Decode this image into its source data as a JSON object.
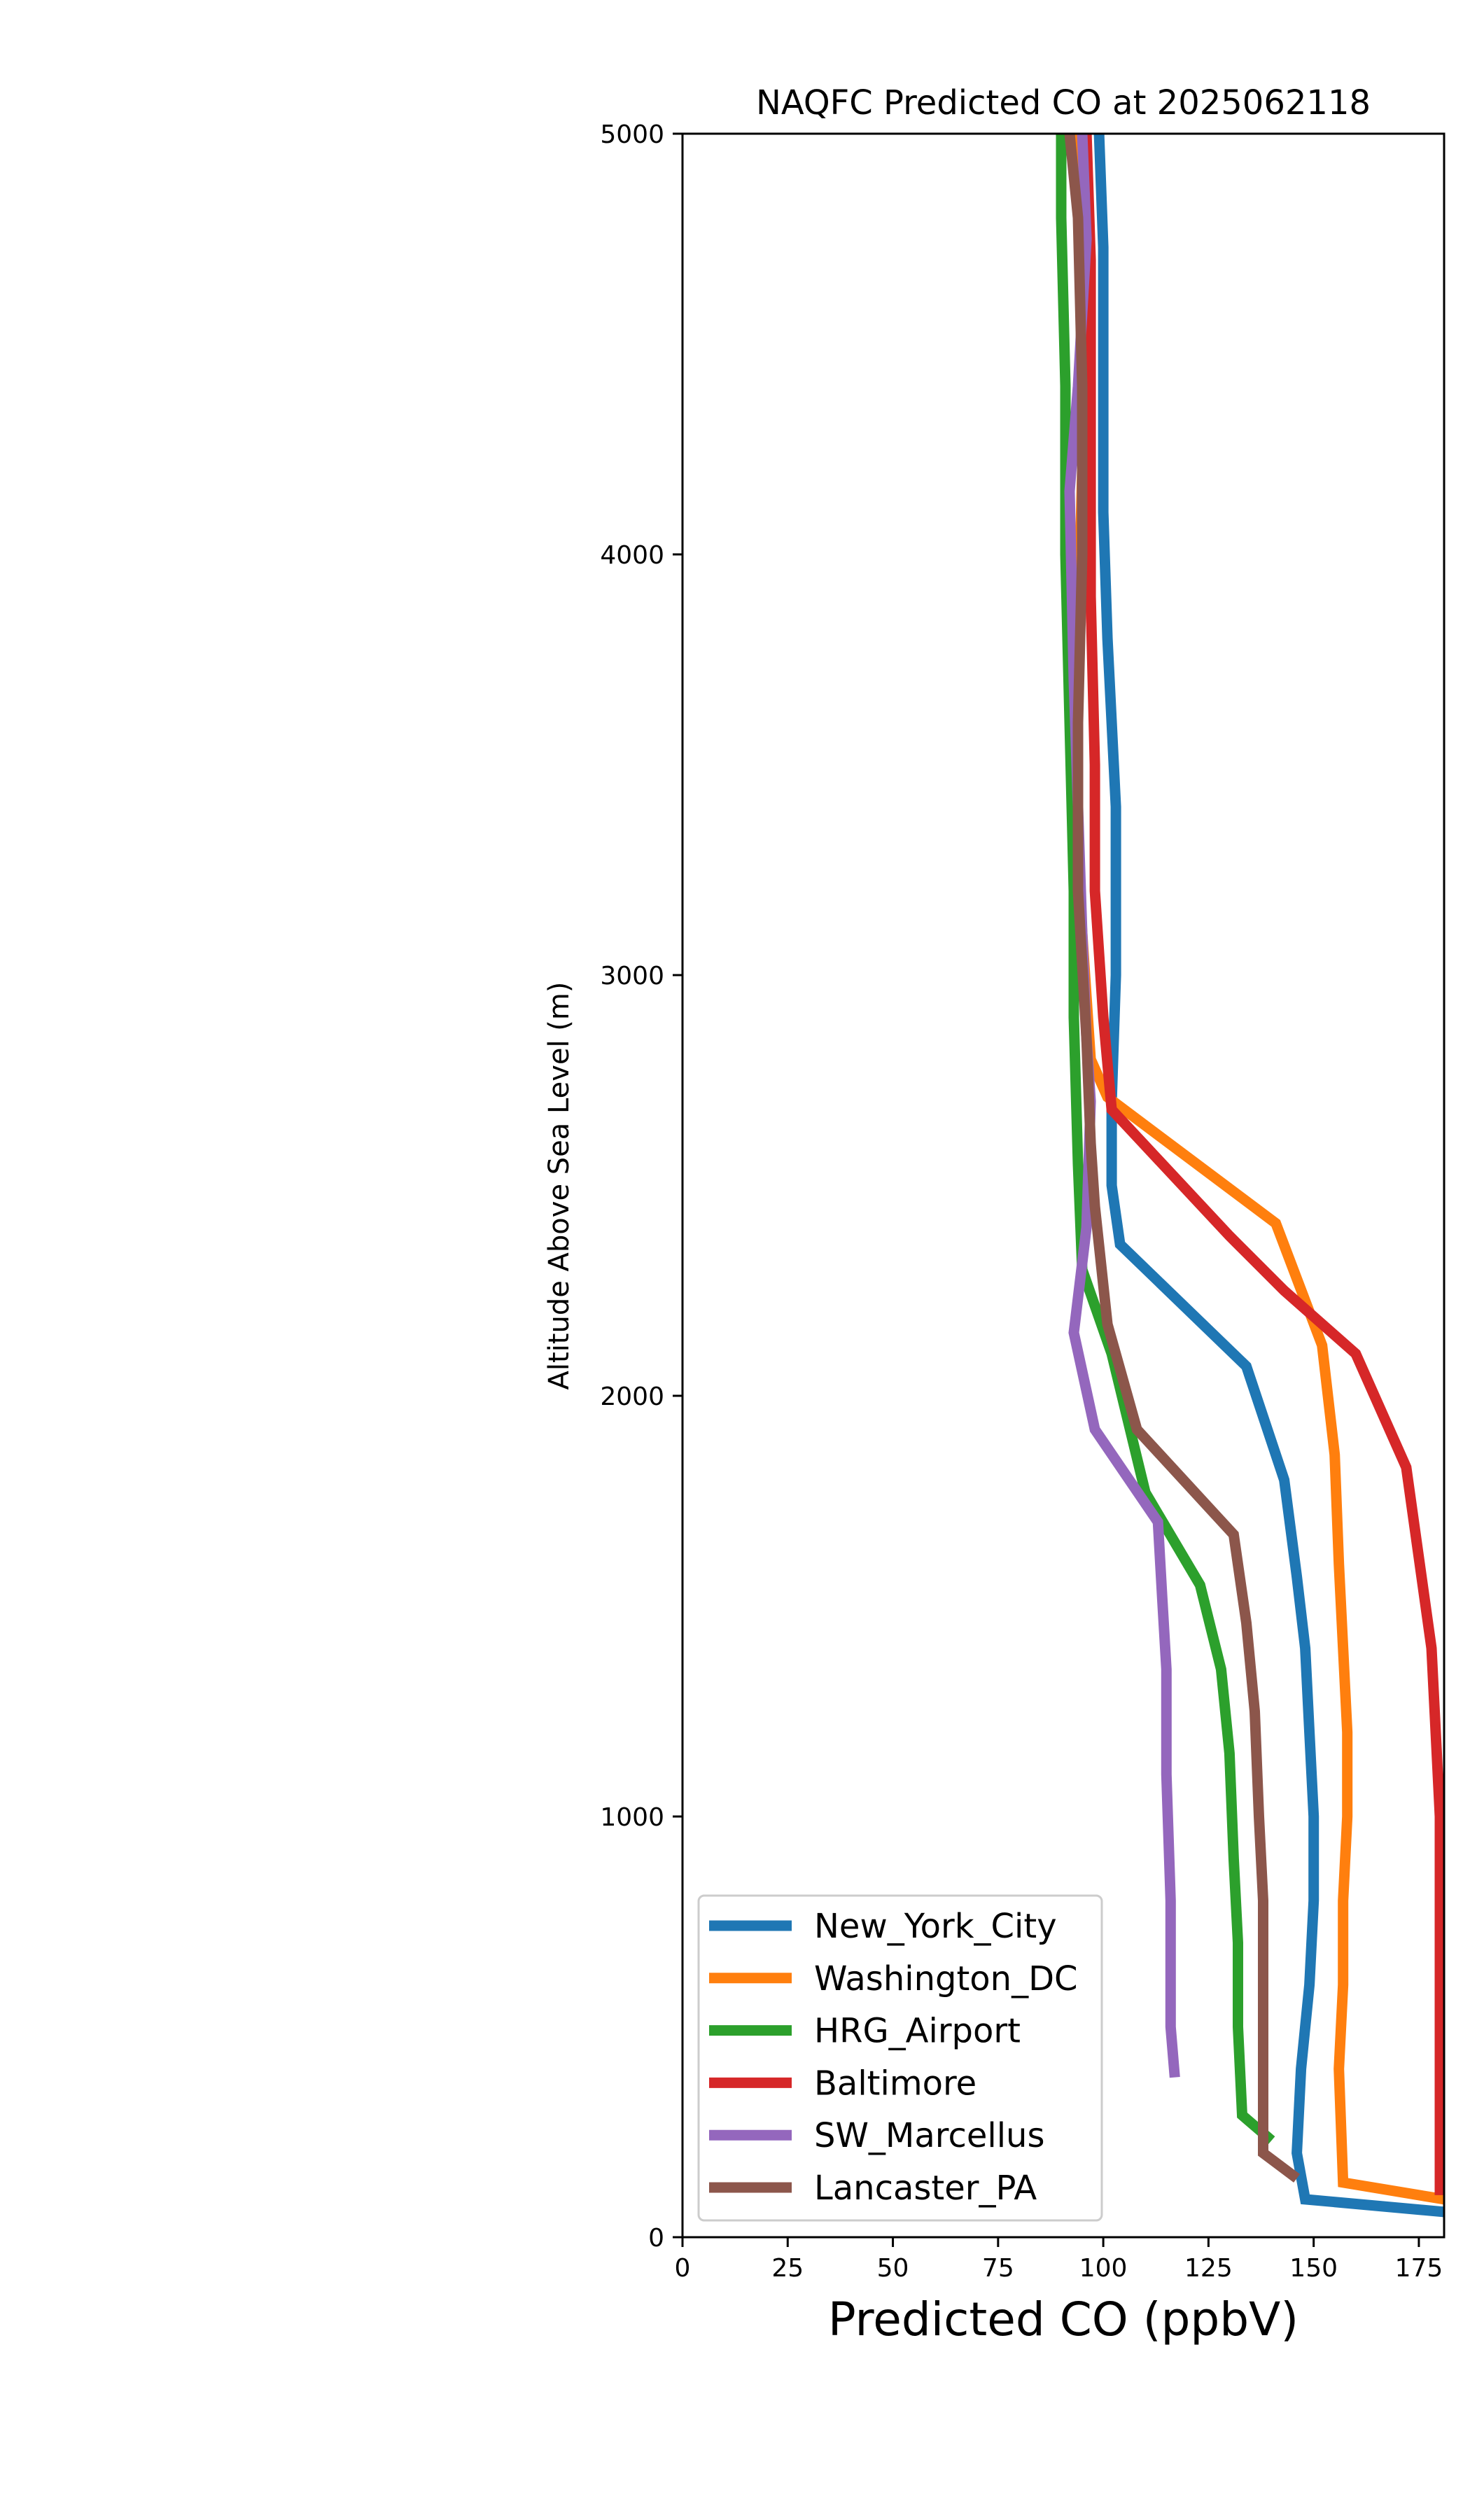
{
  "chart_data": {
    "type": "line",
    "title": "NAQFC Predicted CO at 2025062118",
    "xlabel": "Predicted CO (ppbV)",
    "ylabel": "Altitude Above Sea Level (m)",
    "xlim": [
      0,
      181
    ],
    "ylim": [
      0,
      5000
    ],
    "xticks": [
      0,
      25,
      50,
      75,
      100,
      125,
      150,
      175
    ],
    "yticks": [
      0,
      1000,
      2000,
      3000,
      4000,
      5000
    ],
    "grid": false,
    "legend_position": "lower-left",
    "series": [
      {
        "name": "New_York_City",
        "color": "#1f77b4",
        "points": [
          [
            181,
            60
          ],
          [
            148,
            90
          ],
          [
            146,
            200
          ],
          [
            147,
            400
          ],
          [
            149,
            600
          ],
          [
            150,
            800
          ],
          [
            150,
            1000
          ],
          [
            149,
            1200
          ],
          [
            148,
            1400
          ],
          [
            146,
            1570
          ],
          [
            143,
            1800
          ],
          [
            134,
            2070
          ],
          [
            104,
            2360
          ],
          [
            102,
            2500
          ],
          [
            102,
            2700
          ],
          [
            103,
            3000
          ],
          [
            103,
            3400
          ],
          [
            101,
            3800
          ],
          [
            100,
            4100
          ],
          [
            100,
            4400
          ],
          [
            100,
            4730
          ],
          [
            99,
            5000
          ]
        ]
      },
      {
        "name": "Washington_DC",
        "color": "#ff7f0e",
        "points": [
          [
            181,
            90
          ],
          [
            157,
            130
          ],
          [
            156,
            400
          ],
          [
            157,
            600
          ],
          [
            157,
            800
          ],
          [
            158,
            1000
          ],
          [
            158,
            1200
          ],
          [
            157,
            1400
          ],
          [
            156,
            1600
          ],
          [
            155,
            1860
          ],
          [
            152,
            2120
          ],
          [
            141,
            2410
          ],
          [
            101,
            2710
          ],
          [
            97,
            2800
          ],
          [
            95,
            3100
          ],
          [
            93,
            3450
          ],
          [
            94,
            3800
          ],
          [
            95,
            4200
          ],
          [
            95,
            4600
          ],
          [
            94,
            5000
          ]
        ]
      },
      {
        "name": "HRG_Airport",
        "color": "#2ca02c",
        "points": [
          [
            140,
            230
          ],
          [
            133,
            290
          ],
          [
            132,
            500
          ],
          [
            132,
            700
          ],
          [
            131,
            900
          ],
          [
            130,
            1150
          ],
          [
            128,
            1350
          ],
          [
            123,
            1550
          ],
          [
            110,
            1770
          ],
          [
            102,
            2100
          ],
          [
            95,
            2300
          ],
          [
            94,
            2550
          ],
          [
            93,
            2900
          ],
          [
            93,
            3200
          ],
          [
            92,
            3600
          ],
          [
            91,
            4000
          ],
          [
            91,
            4400
          ],
          [
            90,
            4800
          ],
          [
            90,
            5000
          ]
        ]
      },
      {
        "name": "Baltimore",
        "color": "#d62728",
        "points": [
          [
            180,
            100
          ],
          [
            180,
            400
          ],
          [
            180,
            700
          ],
          [
            180,
            1000
          ],
          [
            178,
            1400
          ],
          [
            172,
            1830
          ],
          [
            160,
            2100
          ],
          [
            143,
            2250
          ],
          [
            130,
            2380
          ],
          [
            102,
            2680
          ],
          [
            100,
            2900
          ],
          [
            98,
            3200
          ],
          [
            98,
            3500
          ],
          [
            97,
            3900
          ],
          [
            97,
            4300
          ],
          [
            97,
            4700
          ],
          [
            96,
            5000
          ]
        ]
      },
      {
        "name": "SW_Marcellus",
        "color": "#9467bd",
        "points": [
          [
            117,
            380
          ],
          [
            116,
            500
          ],
          [
            116,
            800
          ],
          [
            115,
            1100
          ],
          [
            115,
            1350
          ],
          [
            114,
            1520
          ],
          [
            113,
            1700
          ],
          [
            98,
            1920
          ],
          [
            93,
            2150
          ],
          [
            96,
            2400
          ],
          [
            97,
            2700
          ],
          [
            96,
            2850
          ],
          [
            95,
            3100
          ],
          [
            94,
            3400
          ],
          [
            93,
            3700
          ],
          [
            92,
            4150
          ],
          [
            94,
            4400
          ],
          [
            96,
            4750
          ],
          [
            95,
            5000
          ]
        ]
      },
      {
        "name": "Lancaster_PA",
        "color": "#8c564b",
        "points": [
          [
            146,
            140
          ],
          [
            138,
            200
          ],
          [
            138,
            500
          ],
          [
            138,
            800
          ],
          [
            137,
            1000
          ],
          [
            136,
            1250
          ],
          [
            134,
            1460
          ],
          [
            131,
            1670
          ],
          [
            108,
            1920
          ],
          [
            101,
            2170
          ],
          [
            98,
            2450
          ],
          [
            97,
            2600
          ],
          [
            96,
            2850
          ],
          [
            94,
            3200
          ],
          [
            94,
            3600
          ],
          [
            95,
            4000
          ],
          [
            95,
            4400
          ],
          [
            94,
            4800
          ],
          [
            92,
            5000
          ]
        ]
      }
    ]
  }
}
